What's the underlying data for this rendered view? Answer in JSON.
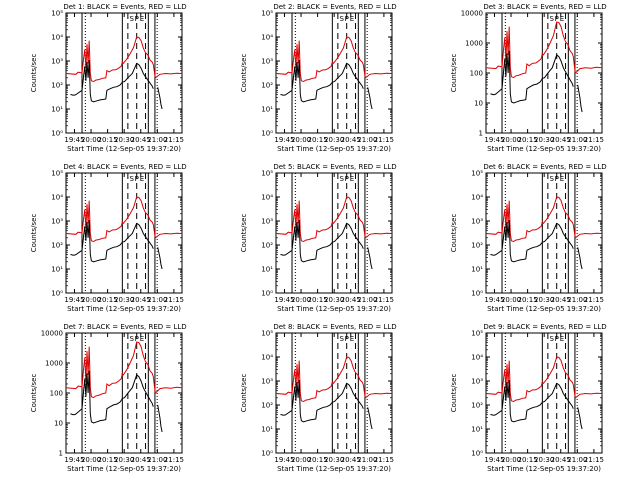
{
  "chart_data": [
    {
      "title": "Det 1: BLACK = Events, RED = LLD",
      "type": "line",
      "ylabel": "Counts/sec",
      "xlabel": "Start Time (12-Sep-05 19:37:20)",
      "yscale": "log",
      "ylim": [
        1,
        100000
      ],
      "ytick_labels": [
        "10⁰",
        "10¹",
        "10²",
        "10³",
        "10⁴",
        "10⁵"
      ],
      "ytick_values": [
        1,
        10,
        100,
        1000,
        10000,
        100000
      ],
      "series": [
        {
          "name": "Events",
          "color": "#000000"
        },
        {
          "name": "LLD",
          "color": "#e00000"
        }
      ]
    },
    {
      "title": "Det 2: BLACK = Events, RED = LLD",
      "type": "line",
      "ylabel": "Counts/sec",
      "xlabel": "Start Time (12-Sep-05 19:37:20)",
      "yscale": "log",
      "ylim": [
        1,
        100000
      ],
      "ytick_labels": [
        "10⁰",
        "10¹",
        "10²",
        "10³",
        "10⁴",
        "10⁵"
      ],
      "ytick_values": [
        1,
        10,
        100,
        1000,
        10000,
        100000
      ],
      "series": [
        {
          "name": "Events",
          "color": "#000000"
        },
        {
          "name": "LLD",
          "color": "#e00000"
        }
      ]
    },
    {
      "title": "Det 3: BLACK = Events, RED = LLD",
      "type": "line",
      "ylabel": "Counts/sec",
      "xlabel": "Start Time (12-Sep-05 19:37:20)",
      "yscale": "log",
      "ylim": [
        1,
        10000
      ],
      "ytick_labels": [
        "1",
        "10",
        "100",
        "1000",
        "10000"
      ],
      "ytick_values": [
        1,
        10,
        100,
        1000,
        10000
      ],
      "series": [
        {
          "name": "Events",
          "color": "#000000"
        },
        {
          "name": "LLD",
          "color": "#e00000"
        }
      ]
    },
    {
      "title": "Det 4: BLACK = Events, RED = LLD",
      "type": "line",
      "ylabel": "Counts/sec",
      "xlabel": "Start Time (12-Sep-05 19:37:20)",
      "yscale": "log",
      "ylim": [
        1,
        100000
      ],
      "ytick_labels": [
        "10⁰",
        "10¹",
        "10²",
        "10³",
        "10⁴",
        "10⁵"
      ],
      "ytick_values": [
        1,
        10,
        100,
        1000,
        10000,
        100000
      ],
      "series": [
        {
          "name": "Events",
          "color": "#000000"
        },
        {
          "name": "LLD",
          "color": "#e00000"
        }
      ]
    },
    {
      "title": "Det 5: BLACK = Events, RED = LLD",
      "type": "line",
      "ylabel": "Counts/sec",
      "xlabel": "Start Time (12-Sep-05 19:37:20)",
      "yscale": "log",
      "ylim": [
        1,
        100000
      ],
      "ytick_labels": [
        "10⁰",
        "10¹",
        "10²",
        "10³",
        "10⁴",
        "10⁵"
      ],
      "ytick_values": [
        1,
        10,
        100,
        1000,
        10000,
        100000
      ],
      "series": [
        {
          "name": "Events",
          "color": "#000000"
        },
        {
          "name": "LLD",
          "color": "#e00000"
        }
      ]
    },
    {
      "title": "Det 6: BLACK = Events, RED = LLD",
      "type": "line",
      "ylabel": "Counts/sec",
      "xlabel": "Start Time (12-Sep-05 19:37:20)",
      "yscale": "log",
      "ylim": [
        1,
        100000
      ],
      "ytick_labels": [
        "10⁰",
        "10¹",
        "10²",
        "10³",
        "10⁴",
        "10⁵"
      ],
      "ytick_values": [
        1,
        10,
        100,
        1000,
        10000,
        100000
      ],
      "series": [
        {
          "name": "Events",
          "color": "#000000"
        },
        {
          "name": "LLD",
          "color": "#e00000"
        }
      ]
    },
    {
      "title": "Det 7: BLACK = Events, RED = LLD",
      "type": "line",
      "ylabel": "Counts/sec",
      "xlabel": "Start Time (12-Sep-05 19:37:20)",
      "yscale": "log",
      "ylim": [
        1,
        10000
      ],
      "ytick_labels": [
        "1",
        "10",
        "100",
        "1000",
        "10000"
      ],
      "ytick_values": [
        1,
        10,
        100,
        1000,
        10000
      ],
      "series": [
        {
          "name": "Events",
          "color": "#000000"
        },
        {
          "name": "LLD",
          "color": "#e00000"
        }
      ]
    },
    {
      "title": "Det 8: BLACK = Events, RED = LLD",
      "type": "line",
      "ylabel": "Counts/sec",
      "xlabel": "Start Time (12-Sep-05 19:37:20)",
      "yscale": "log",
      "ylim": [
        1,
        100000
      ],
      "ytick_labels": [
        "10⁰",
        "10¹",
        "10²",
        "10³",
        "10⁴",
        "10⁵"
      ],
      "ytick_values": [
        1,
        10,
        100,
        1000,
        10000,
        100000
      ],
      "series": [
        {
          "name": "Events",
          "color": "#000000"
        },
        {
          "name": "LLD",
          "color": "#e00000"
        }
      ]
    },
    {
      "title": "Det 9: BLACK = Events, RED = LLD",
      "type": "line",
      "ylabel": "Counts/sec",
      "xlabel": "Start Time (12-Sep-05 19:37:20)",
      "yscale": "log",
      "ylim": [
        1,
        100000
      ],
      "ytick_labels": [
        "10⁰",
        "10¹",
        "10²",
        "10³",
        "10⁴",
        "10⁵"
      ],
      "ytick_values": [
        1,
        10,
        100,
        1000,
        10000,
        100000
      ],
      "series": [
        {
          "name": "Events",
          "color": "#000000"
        },
        {
          "name": "LLD",
          "color": "#e00000"
        }
      ]
    }
  ],
  "shared": {
    "xtick_labels": [
      "19:45",
      "20:00",
      "20:15",
      "20:30",
      "20:45",
      "21:00",
      "21:15"
    ],
    "xtick_minutes": [
      67.67,
      82.67,
      97.67,
      112.67,
      127.67,
      142.67,
      157.67
    ],
    "xlim_minutes": [
      60,
      165
    ],
    "markers": {
      "S": 119.5,
      "P": 124,
      "E": 128.8
    },
    "solid_lines_minutes": [
      74.5,
      111,
      134.5,
      140.5
    ],
    "dashed_lines_minutes": [
      116,
      124,
      132
    ],
    "dotted_lines_minutes": [
      77.5,
      142.5
    ],
    "red_lld_profile": [
      [
        60,
        300
      ],
      [
        69,
        280
      ],
      [
        71,
        340
      ],
      [
        73,
        330
      ],
      [
        74.5,
        320
      ],
      [
        76,
        1400
      ],
      [
        77,
        3000
      ],
      [
        78,
        500
      ],
      [
        79,
        5000
      ],
      [
        80,
        800
      ],
      [
        81,
        7000
      ],
      [
        82,
        300
      ],
      [
        83,
        150
      ],
      [
        85,
        140
      ],
      [
        87,
        160
      ],
      [
        90,
        170
      ],
      [
        93,
        190
      ],
      [
        96,
        200
      ],
      [
        97,
        400
      ],
      [
        99,
        350
      ],
      [
        102,
        420
      ],
      [
        105,
        430
      ],
      [
        107,
        480
      ],
      [
        110,
        600
      ],
      [
        111,
        900
      ],
      [
        112,
        800
      ],
      [
        115,
        1200
      ],
      [
        118,
        2000
      ],
      [
        121,
        3500
      ],
      [
        124,
        10000
      ],
      [
        126,
        9500
      ],
      [
        128,
        7000
      ],
      [
        130,
        3500
      ],
      [
        132,
        2200
      ],
      [
        134,
        1800
      ],
      [
        136,
        1100
      ],
      [
        138,
        900
      ],
      [
        139,
        700
      ],
      [
        140.5,
        250
      ],
      [
        141,
        200
      ],
      [
        145,
        280
      ],
      [
        150,
        300
      ],
      [
        155,
        290
      ],
      [
        160,
        310
      ],
      [
        165,
        300
      ]
    ],
    "black_events_profile": [
      [
        64,
        40
      ],
      [
        65,
        40
      ],
      [
        66,
        38
      ],
      [
        68,
        38
      ],
      [
        69,
        40
      ],
      [
        74.5,
        60
      ],
      [
        76,
        250
      ],
      [
        77,
        600
      ],
      [
        78,
        150
      ],
      [
        79,
        900
      ],
      [
        80,
        200
      ],
      [
        81,
        1100
      ],
      [
        82,
        40
      ],
      [
        83,
        22
      ],
      [
        85,
        20
      ],
      [
        88,
        22
      ],
      [
        91,
        24
      ],
      [
        94,
        25
      ],
      [
        96,
        26
      ],
      [
        97,
        60
      ],
      [
        100,
        70
      ],
      [
        103,
        80
      ],
      [
        106,
        85
      ],
      [
        109,
        100
      ],
      [
        111,
        130
      ],
      [
        113,
        140
      ],
      [
        116,
        200
      ],
      [
        120,
        300
      ],
      [
        124,
        800
      ],
      [
        126,
        700
      ],
      [
        128,
        500
      ],
      [
        130,
        300
      ],
      [
        132,
        220
      ],
      [
        134,
        160
      ],
      [
        136,
        120
      ],
      [
        138,
        90
      ],
      [
        139,
        70
      ]
    ],
    "black_tail_profile": [
      [
        143,
        80
      ],
      [
        145,
        30
      ],
      [
        146,
        15
      ],
      [
        147,
        10
      ]
    ]
  }
}
